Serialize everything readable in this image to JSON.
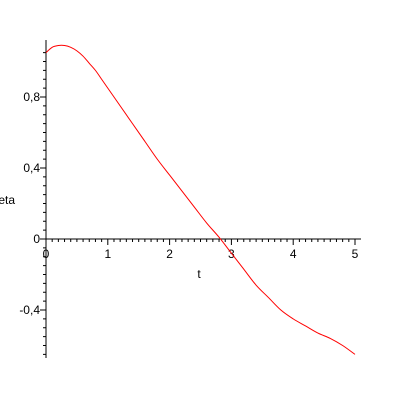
{
  "chart_data": {
    "type": "line",
    "title": "",
    "xlabel": "t",
    "ylabel": "eta",
    "xlim": [
      0,
      5
    ],
    "ylim": [
      -0.68,
      1.1
    ],
    "grid": false,
    "x_ticks": [
      {
        "value": 0,
        "label": "0"
      },
      {
        "value": 1,
        "label": "1"
      },
      {
        "value": 2,
        "label": "2"
      },
      {
        "value": 3,
        "label": "3"
      },
      {
        "value": 4,
        "label": "4"
      },
      {
        "value": 5,
        "label": "5"
      }
    ],
    "y_ticks": [
      {
        "value": 0.8,
        "label": "0,8"
      },
      {
        "value": 0.4,
        "label": "0,4"
      },
      {
        "value": 0,
        "label": "0"
      },
      {
        "value": -0.4,
        "label": "-0,4"
      }
    ],
    "series": [
      {
        "color": "#ff0000",
        "x": [
          0,
          0.1,
          0.2,
          0.3,
          0.4,
          0.5,
          0.6,
          0.7,
          0.8,
          0.9,
          1.0,
          1.2,
          1.4,
          1.6,
          1.8,
          2.0,
          2.2,
          2.4,
          2.6,
          2.8,
          3.0,
          3.2,
          3.4,
          3.6,
          3.8,
          4.0,
          4.2,
          4.4,
          4.6,
          4.8,
          5.0
        ],
        "y": [
          1.05,
          1.08,
          1.09,
          1.09,
          1.08,
          1.06,
          1.03,
          0.99,
          0.95,
          0.9,
          0.85,
          0.75,
          0.65,
          0.55,
          0.45,
          0.36,
          0.27,
          0.18,
          0.09,
          0.01,
          -0.08,
          -0.17,
          -0.26,
          -0.33,
          -0.4,
          -0.45,
          -0.49,
          -0.53,
          -0.56,
          -0.6,
          -0.65
        ]
      }
    ]
  }
}
